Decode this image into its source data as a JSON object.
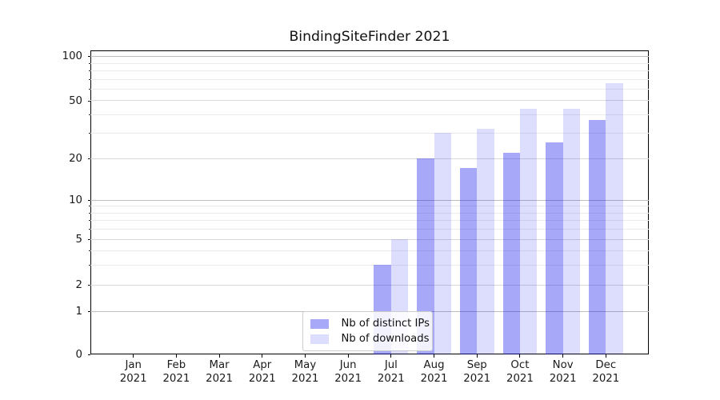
{
  "chart_data": {
    "type": "bar",
    "title": "BindingSiteFinder 2021",
    "x_categories": [
      "Jan 2021",
      "Feb 2021",
      "Mar 2021",
      "Apr 2021",
      "May 2021",
      "Jun 2021",
      "Jul 2021",
      "Aug 2021",
      "Sep 2021",
      "Oct 2021",
      "Nov 2021",
      "Dec 2021"
    ],
    "series": [
      {
        "name": "Nb of distinct IPs",
        "color": "#1414F05E",
        "values": [
          0,
          0,
          0,
          0,
          0,
          0,
          3,
          20,
          17,
          22,
          26,
          37
        ]
      },
      {
        "name": "Nb of downloads",
        "color": "#1414F025",
        "values": [
          0,
          0,
          0,
          0,
          0,
          0,
          5,
          30,
          32,
          44,
          44,
          66
        ]
      }
    ],
    "xlabel": "",
    "ylabel": "",
    "yscale": "symlog",
    "ylim": [
      0,
      111
    ],
    "y_tick_labels": [
      "0",
      "1",
      "2",
      "5",
      "10",
      "20",
      "50",
      "100"
    ],
    "y_tick_values": [
      0,
      1,
      2,
      5,
      10,
      20,
      50,
      100
    ],
    "y_major_grid_values": [
      1,
      10,
      100
    ],
    "y_mid_grid_values": [
      2,
      5,
      20,
      50
    ],
    "y_minor_grid_values": [
      3,
      4,
      6,
      7,
      8,
      9,
      30,
      40,
      60,
      70,
      80,
      90
    ],
    "grid": true,
    "legend_position": "lower center",
    "spine_color": "#000000",
    "background_color": "#ffffff"
  }
}
